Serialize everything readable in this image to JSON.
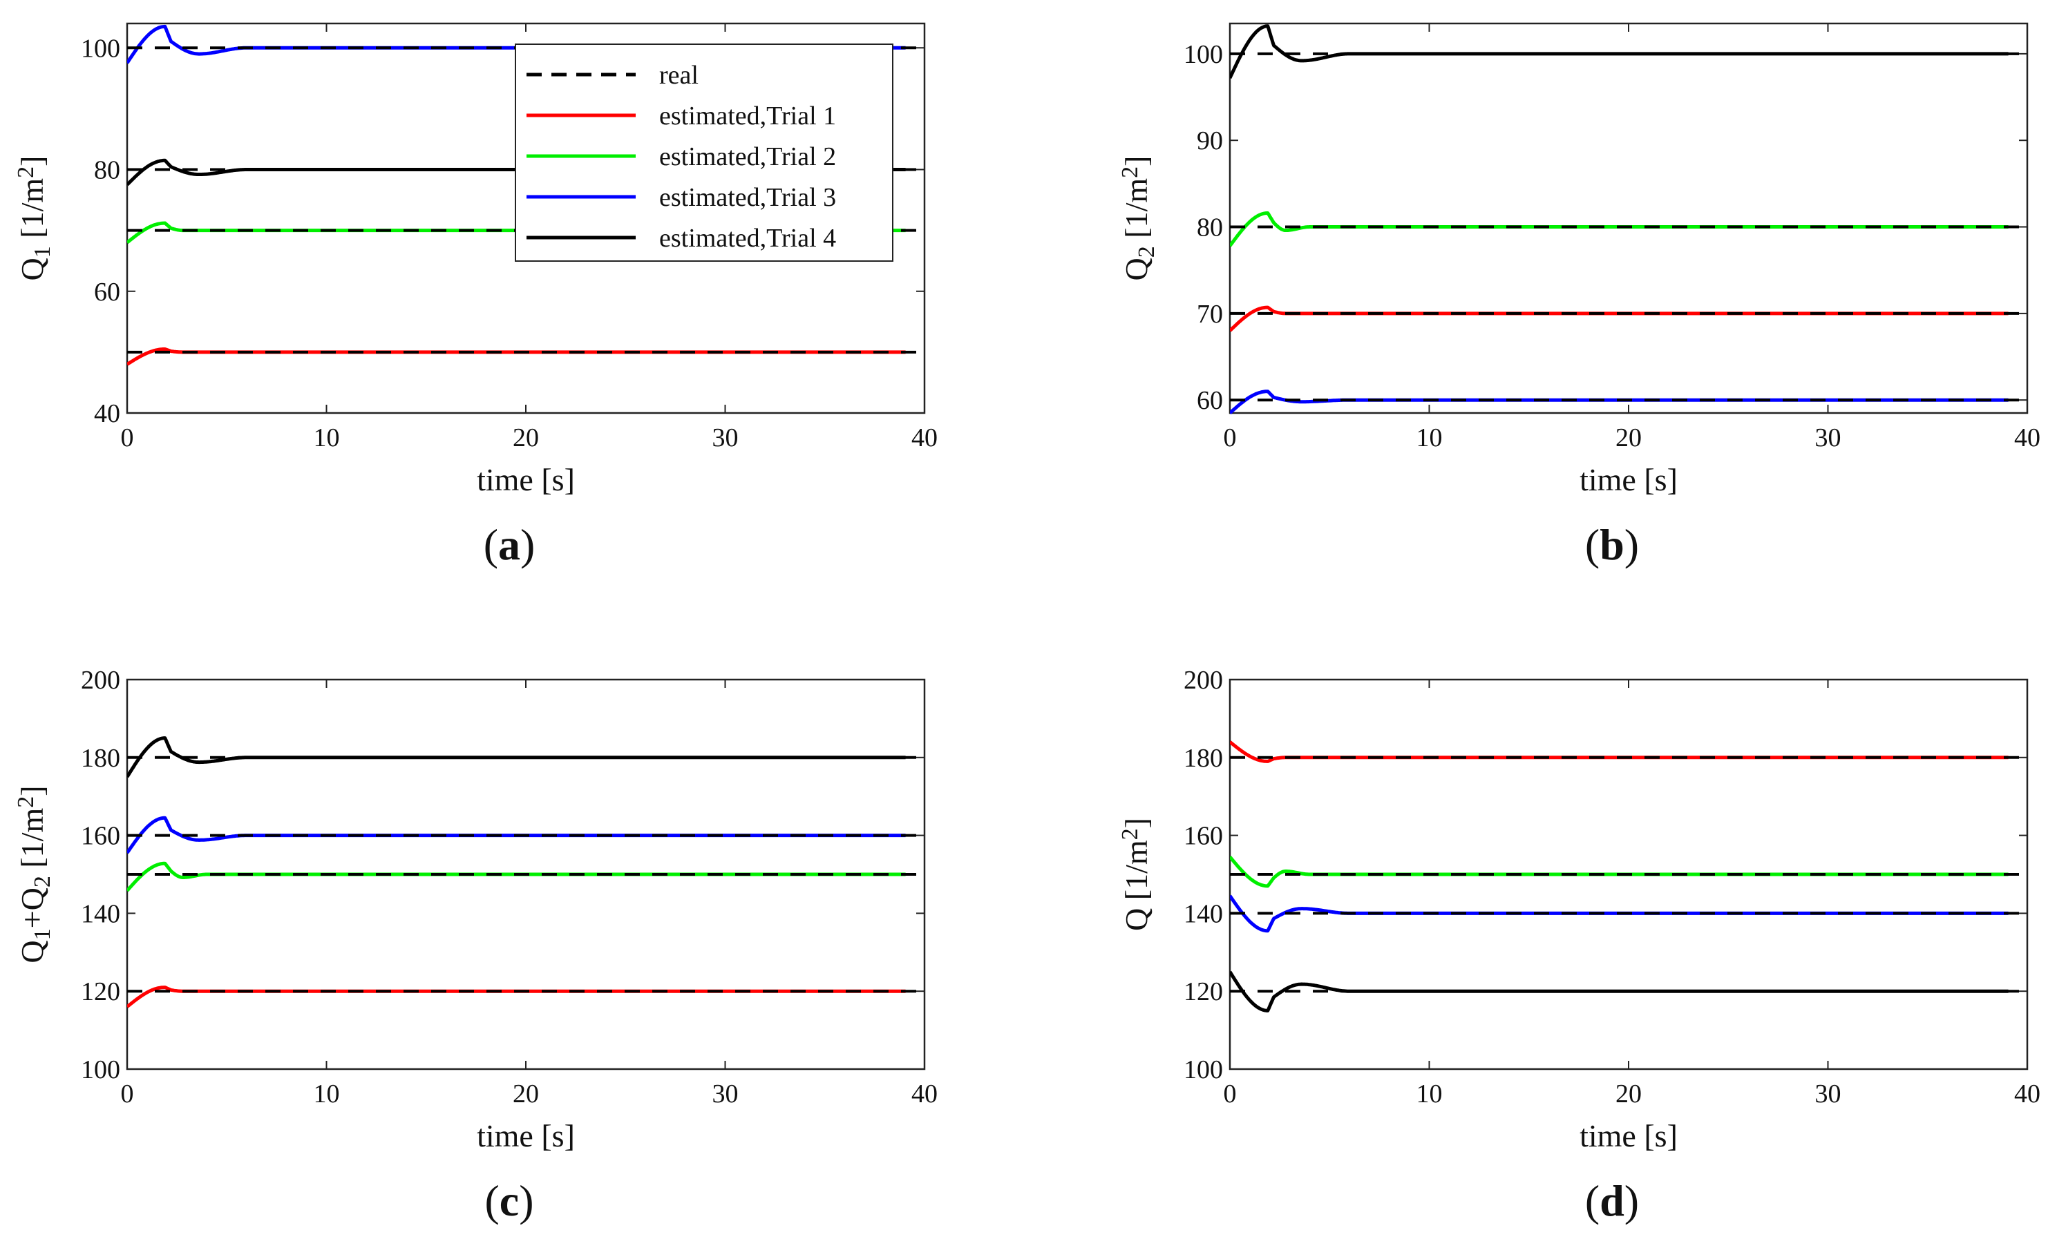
{
  "figure": {
    "legend_labels": [
      "real",
      "estimated,Trial 1",
      "estimated,Trial 2",
      "estimated,Trial 3",
      "estimated,Trial 4"
    ]
  },
  "colors": {
    "real": "#000000",
    "trial1": "#ff0000",
    "trial2": "#00ee00",
    "trial3": "#0000ff",
    "trial4": "#000000",
    "axis": "#222222"
  },
  "chart_data": [
    {
      "id": "a",
      "type": "line",
      "panel_label": "a",
      "xlabel": "time [s]",
      "ylabel": "Q1 [1/m2]",
      "ylabel_main": "Q",
      "ylabel_sub": "1",
      "ylabel_unit": " [1/m",
      "ylabel_sup": "2",
      "ylabel_end": "]",
      "xlim": [
        0,
        40
      ],
      "ylim": [
        40,
        104
      ],
      "xticks": [
        0,
        10,
        20,
        30,
        40
      ],
      "yticks": [
        40,
        60,
        80,
        100
      ],
      "legend": "top-center",
      "series": [
        {
          "name": "estimated,Trial 1",
          "trial": 1,
          "final": 50,
          "real": 50,
          "start": 48,
          "peak": 50.5,
          "dip": 50,
          "settle_t": 2.5
        },
        {
          "name": "estimated,Trial 2",
          "trial": 2,
          "final": 70,
          "real": 70,
          "start": 68,
          "peak": 71.2,
          "dip": 70,
          "settle_t": 3
        },
        {
          "name": "estimated,Trial 4",
          "trial": 4,
          "final": 80,
          "real": 80,
          "start": 77.5,
          "peak": 81.5,
          "dip": 79.2,
          "settle_t": 6
        },
        {
          "name": "estimated,Trial 3",
          "trial": 3,
          "final": 100,
          "real": 100,
          "start": 97.5,
          "peak": 103.5,
          "dip": 99,
          "settle_t": 6
        }
      ]
    },
    {
      "id": "b",
      "type": "line",
      "panel_label": "b",
      "xlabel": "time [s]",
      "ylabel": "Q2 [1/m2]",
      "ylabel_main": "Q",
      "ylabel_sub": "2",
      "ylabel_unit": " [1/m",
      "ylabel_sup": "2",
      "ylabel_end": "]",
      "xlim": [
        0,
        40
      ],
      "ylim": [
        58.5,
        103.5
      ],
      "xticks": [
        0,
        10,
        20,
        30,
        40
      ],
      "yticks": [
        60,
        70,
        80,
        90,
        100
      ],
      "legend": "none",
      "series": [
        {
          "name": "estimated,Trial 3",
          "trial": 3,
          "final": 60,
          "real": 60,
          "start": 58.5,
          "peak": 61,
          "dip": 59.8,
          "settle_t": 6
        },
        {
          "name": "estimated,Trial 1",
          "trial": 1,
          "final": 70,
          "real": 70,
          "start": 68,
          "peak": 70.7,
          "dip": 70,
          "settle_t": 2.5
        },
        {
          "name": "estimated,Trial 2",
          "trial": 2,
          "final": 80,
          "real": 80,
          "start": 77.8,
          "peak": 81.6,
          "dip": 79.6,
          "settle_t": 4
        },
        {
          "name": "estimated,Trial 4",
          "trial": 4,
          "final": 100,
          "real": 100,
          "start": 97.2,
          "peak": 103.2,
          "dip": 99.2,
          "settle_t": 6
        }
      ]
    },
    {
      "id": "c",
      "type": "line",
      "panel_label": "c",
      "xlabel": "time [s]",
      "ylabel": "Q1+Q2 [1/m2]",
      "ylabel_main": "Q",
      "ylabel_sub": "1",
      "ylabel_mid": "+Q",
      "ylabel_sub2": "2",
      "ylabel_unit": " [1/m",
      "ylabel_sup": "2",
      "ylabel_end": "]",
      "xlim": [
        0,
        40
      ],
      "ylim": [
        100,
        200
      ],
      "xticks": [
        0,
        10,
        20,
        30,
        40
      ],
      "yticks": [
        100,
        120,
        140,
        160,
        180,
        200
      ],
      "legend": "none",
      "series": [
        {
          "name": "estimated,Trial 1",
          "trial": 1,
          "final": 120,
          "real": 120,
          "start": 116,
          "peak": 121,
          "dip": 120,
          "settle_t": 2.5
        },
        {
          "name": "estimated,Trial 2",
          "trial": 2,
          "final": 150,
          "real": 150,
          "start": 145.8,
          "peak": 152.8,
          "dip": 149.2,
          "settle_t": 4
        },
        {
          "name": "estimated,Trial 3",
          "trial": 3,
          "final": 160,
          "real": 160,
          "start": 155.5,
          "peak": 164.5,
          "dip": 158.8,
          "settle_t": 6
        },
        {
          "name": "estimated,Trial 4",
          "trial": 4,
          "final": 180,
          "real": 180,
          "start": 175,
          "peak": 185,
          "dip": 178.8,
          "settle_t": 6
        }
      ]
    },
    {
      "id": "d",
      "type": "line",
      "panel_label": "d",
      "xlabel": "time [s]",
      "ylabel": "Q [1/m2]",
      "ylabel_main": "Q",
      "ylabel_unit": " [1/m",
      "ylabel_sup": "2",
      "ylabel_end": "]",
      "xlim": [
        0,
        40
      ],
      "ylim": [
        100,
        200
      ],
      "xticks": [
        0,
        10,
        20,
        30,
        40
      ],
      "yticks": [
        100,
        120,
        140,
        160,
        180,
        200
      ],
      "legend": "none",
      "series": [
        {
          "name": "estimated,Trial 4",
          "trial": 4,
          "final": 120,
          "real": 120,
          "start": 125,
          "peak": 115,
          "dip": 121.8,
          "settle_t": 6
        },
        {
          "name": "estimated,Trial 3",
          "trial": 3,
          "final": 140,
          "real": 140,
          "start": 144.5,
          "peak": 135.5,
          "dip": 141.2,
          "settle_t": 6
        },
        {
          "name": "estimated,Trial 2",
          "trial": 2,
          "final": 150,
          "real": 150,
          "start": 154.5,
          "peak": 147,
          "dip": 150.8,
          "settle_t": 4
        },
        {
          "name": "estimated,Trial 1",
          "trial": 1,
          "final": 180,
          "real": 180,
          "start": 184,
          "peak": 179,
          "dip": 180,
          "settle_t": 2.5
        }
      ]
    }
  ]
}
